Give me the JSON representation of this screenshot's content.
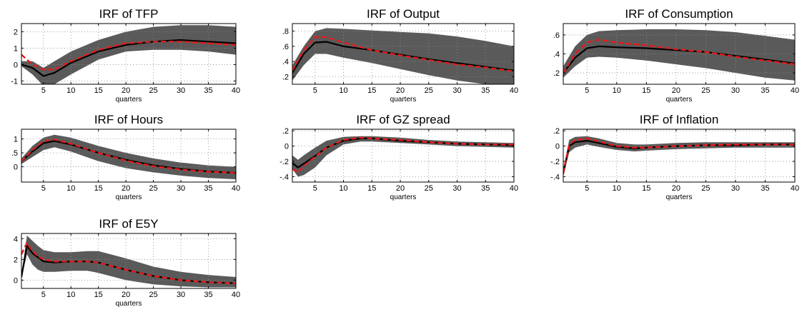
{
  "figure": {
    "colors": {
      "band": "#5a5a5a",
      "median": "#000000",
      "model": "#e8191a",
      "grid": "#8c8c8c"
    }
  },
  "chart_data": [
    {
      "type": "line",
      "title": "IRF of TFP",
      "xlabel": "quarters",
      "xlim": [
        1,
        40
      ],
      "ylim": [
        -1.2,
        2.5
      ],
      "xticks": [
        5,
        10,
        15,
        20,
        25,
        30,
        35,
        40
      ],
      "yticks": [
        -1,
        0,
        1,
        2
      ],
      "grid": true,
      "x": [
        1,
        3,
        5,
        7,
        10,
        15,
        20,
        25,
        30,
        35,
        40
      ],
      "series": [
        {
          "role": "band-lower",
          "values": [
            -0.1,
            -0.6,
            -1.3,
            -1.2,
            -0.6,
            0.3,
            0.8,
            0.9,
            0.9,
            0.8,
            0.6
          ]
        },
        {
          "role": "band-upper",
          "values": [
            0.2,
            0.2,
            -0.2,
            0.2,
            0.8,
            1.5,
            2.0,
            2.3,
            2.4,
            2.4,
            2.3
          ]
        },
        {
          "role": "median",
          "values": [
            0.0,
            -0.2,
            -0.7,
            -0.5,
            0.1,
            0.8,
            1.2,
            1.4,
            1.5,
            1.4,
            1.3
          ]
        },
        {
          "role": "model",
          "values": [
            0.6,
            0.0,
            -0.3,
            -0.3,
            0.2,
            0.9,
            1.3,
            1.4,
            1.4,
            1.3,
            1.2
          ]
        }
      ]
    },
    {
      "type": "line",
      "title": "IRF of Output",
      "xlabel": "quarters",
      "xlim": [
        1,
        40
      ],
      "ylim": [
        0.1,
        0.9
      ],
      "xticks": [
        5,
        10,
        15,
        20,
        25,
        30,
        35,
        40
      ],
      "yticks": [
        0.2,
        0.4,
        0.6,
        0.8
      ],
      "grid": true,
      "x": [
        1,
        3,
        5,
        7,
        10,
        15,
        20,
        25,
        30,
        35,
        40
      ],
      "series": [
        {
          "role": "band-lower",
          "values": [
            0.15,
            0.35,
            0.5,
            0.5,
            0.45,
            0.38,
            0.3,
            0.22,
            0.15,
            0.1,
            0.05
          ]
        },
        {
          "role": "band-upper",
          "values": [
            0.35,
            0.6,
            0.8,
            0.84,
            0.83,
            0.81,
            0.79,
            0.77,
            0.73,
            0.67,
            0.6
          ]
        },
        {
          "role": "median",
          "values": [
            0.25,
            0.5,
            0.65,
            0.66,
            0.6,
            0.55,
            0.49,
            0.43,
            0.38,
            0.33,
            0.28
          ]
        },
        {
          "role": "model",
          "values": [
            0.28,
            0.55,
            0.72,
            0.72,
            0.65,
            0.55,
            0.48,
            0.42,
            0.36,
            0.32,
            0.27
          ]
        }
      ]
    },
    {
      "type": "line",
      "title": "IRF of Consumption",
      "xlabel": "quarters",
      "xlim": [
        1,
        40
      ],
      "ylim": [
        0.08,
        0.72
      ],
      "xticks": [
        5,
        10,
        15,
        20,
        25,
        30,
        35,
        40
      ],
      "yticks": [
        0.2,
        0.4,
        0.6
      ],
      "grid": true,
      "x": [
        1,
        3,
        5,
        7,
        10,
        15,
        20,
        25,
        30,
        35,
        40
      ],
      "series": [
        {
          "role": "band-lower",
          "values": [
            0.15,
            0.27,
            0.36,
            0.37,
            0.36,
            0.33,
            0.29,
            0.25,
            0.2,
            0.15,
            0.12
          ]
        },
        {
          "role": "band-upper",
          "values": [
            0.27,
            0.48,
            0.6,
            0.64,
            0.65,
            0.66,
            0.66,
            0.65,
            0.63,
            0.59,
            0.55
          ]
        },
        {
          "role": "median",
          "values": [
            0.2,
            0.36,
            0.46,
            0.48,
            0.47,
            0.46,
            0.44,
            0.42,
            0.38,
            0.34,
            0.3
          ]
        },
        {
          "role": "model",
          "values": [
            0.2,
            0.4,
            0.52,
            0.55,
            0.52,
            0.49,
            0.45,
            0.42,
            0.37,
            0.33,
            0.29
          ]
        }
      ]
    },
    {
      "type": "line",
      "title": "IRF of Hours",
      "xlabel": "quarters",
      "xlim": [
        1,
        40
      ],
      "ylim": [
        -0.55,
        1.35
      ],
      "xticks": [
        5,
        10,
        15,
        20,
        25,
        30,
        35,
        40
      ],
      "yticks": [
        0,
        0.5,
        1
      ],
      "grid": true,
      "x": [
        1,
        3,
        5,
        7,
        10,
        15,
        20,
        25,
        30,
        35,
        40
      ],
      "series": [
        {
          "role": "band-lower",
          "values": [
            0.1,
            0.35,
            0.6,
            0.7,
            0.55,
            0.2,
            -0.05,
            -0.2,
            -0.32,
            -0.4,
            -0.45
          ]
        },
        {
          "role": "band-upper",
          "values": [
            0.3,
            0.75,
            1.05,
            1.15,
            1.05,
            0.75,
            0.5,
            0.3,
            0.15,
            0.05,
            0.0
          ]
        },
        {
          "role": "median",
          "values": [
            0.2,
            0.55,
            0.85,
            0.93,
            0.8,
            0.5,
            0.25,
            0.05,
            -0.08,
            -0.17,
            -0.22
          ]
        },
        {
          "role": "model",
          "values": [
            0.2,
            0.6,
            0.92,
            0.98,
            0.83,
            0.5,
            0.22,
            0.02,
            -0.1,
            -0.18,
            -0.22
          ]
        }
      ]
    },
    {
      "type": "line",
      "title": "IRF of GZ spread",
      "xlabel": "quarters",
      "xlim": [
        1,
        40
      ],
      "ylim": [
        -0.47,
        0.22
      ],
      "xticks": [
        5,
        10,
        15,
        20,
        25,
        30,
        35,
        40
      ],
      "yticks": [
        -0.4,
        -0.2,
        0,
        0.2
      ],
      "grid": true,
      "x": [
        1,
        2,
        3,
        5,
        7,
        10,
        13,
        15,
        20,
        25,
        30,
        35,
        40
      ],
      "series": [
        {
          "role": "band-lower",
          "values": [
            -0.3,
            -0.4,
            -0.38,
            -0.28,
            -0.12,
            0.02,
            0.06,
            0.06,
            0.04,
            0.02,
            0.0,
            -0.01,
            -0.02
          ]
        },
        {
          "role": "band-upper",
          "values": [
            -0.12,
            -0.18,
            -0.12,
            -0.02,
            0.07,
            0.12,
            0.13,
            0.13,
            0.11,
            0.08,
            0.06,
            0.05,
            0.04
          ]
        },
        {
          "role": "median",
          "values": [
            -0.22,
            -0.28,
            -0.23,
            -0.13,
            -0.02,
            0.07,
            0.1,
            0.1,
            0.07,
            0.05,
            0.03,
            0.02,
            0.01
          ]
        },
        {
          "role": "model",
          "values": [
            -0.3,
            -0.34,
            -0.26,
            -0.14,
            -0.02,
            0.08,
            0.11,
            0.1,
            0.08,
            0.05,
            0.03,
            0.02,
            0.02
          ]
        }
      ]
    },
    {
      "type": "line",
      "title": "IRF of Inflation",
      "xlabel": "quarters",
      "xlim": [
        1,
        40
      ],
      "ylim": [
        -0.47,
        0.22
      ],
      "xticks": [
        5,
        10,
        15,
        20,
        25,
        30,
        35,
        40
      ],
      "yticks": [
        -0.4,
        -0.2,
        0,
        0.2
      ],
      "grid": true,
      "x": [
        1,
        2,
        3,
        5,
        7,
        10,
        13,
        15,
        20,
        25,
        30,
        35,
        40
      ],
      "series": [
        {
          "role": "band-lower",
          "values": [
            -0.4,
            -0.08,
            -0.02,
            0.02,
            -0.01,
            -0.05,
            -0.07,
            -0.06,
            -0.04,
            -0.03,
            -0.02,
            -0.02,
            -0.02
          ]
        },
        {
          "role": "band-upper",
          "values": [
            -0.3,
            0.08,
            0.12,
            0.13,
            0.1,
            0.04,
            0.02,
            0.02,
            0.04,
            0.05,
            0.05,
            0.05,
            0.05
          ]
        },
        {
          "role": "median",
          "values": [
            -0.36,
            0.0,
            0.05,
            0.07,
            0.04,
            -0.01,
            -0.03,
            -0.02,
            0.0,
            0.01,
            0.01,
            0.02,
            0.02
          ]
        },
        {
          "role": "model",
          "values": [
            -0.35,
            0.02,
            0.08,
            0.1,
            0.06,
            0.0,
            -0.02,
            -0.02,
            0.0,
            0.01,
            0.02,
            0.02,
            0.02
          ]
        }
      ]
    },
    {
      "type": "line",
      "title": "IRF of E5Y",
      "xlabel": "quarters",
      "xlim": [
        1,
        40
      ],
      "ylim": [
        -0.8,
        4.5
      ],
      "xticks": [
        5,
        10,
        15,
        20,
        25,
        30,
        35,
        40
      ],
      "yticks": [
        0,
        2,
        4
      ],
      "grid": true,
      "x": [
        1,
        2,
        3,
        4,
        5,
        7,
        10,
        13,
        15,
        20,
        25,
        30,
        35,
        40
      ],
      "series": [
        {
          "role": "band-lower",
          "values": [
            0.2,
            2.5,
            1.5,
            1.0,
            0.8,
            0.8,
            0.9,
            0.9,
            0.7,
            0.0,
            -0.4,
            -0.6,
            -0.7,
            -0.7
          ]
        },
        {
          "role": "band-upper",
          "values": [
            0.5,
            4.3,
            3.8,
            3.3,
            2.9,
            2.7,
            2.7,
            2.8,
            2.8,
            2.1,
            1.3,
            0.8,
            0.5,
            0.3
          ]
        },
        {
          "role": "median",
          "values": [
            0.3,
            3.3,
            2.6,
            2.2,
            1.8,
            1.7,
            1.8,
            1.8,
            1.7,
            1.0,
            0.4,
            0.0,
            -0.2,
            -0.3
          ]
        },
        {
          "role": "model",
          "values": [
            2.5,
            3.6,
            2.8,
            2.3,
            2.0,
            1.8,
            1.8,
            1.8,
            1.7,
            1.0,
            0.4,
            0.0,
            -0.2,
            -0.3
          ]
        }
      ]
    }
  ]
}
